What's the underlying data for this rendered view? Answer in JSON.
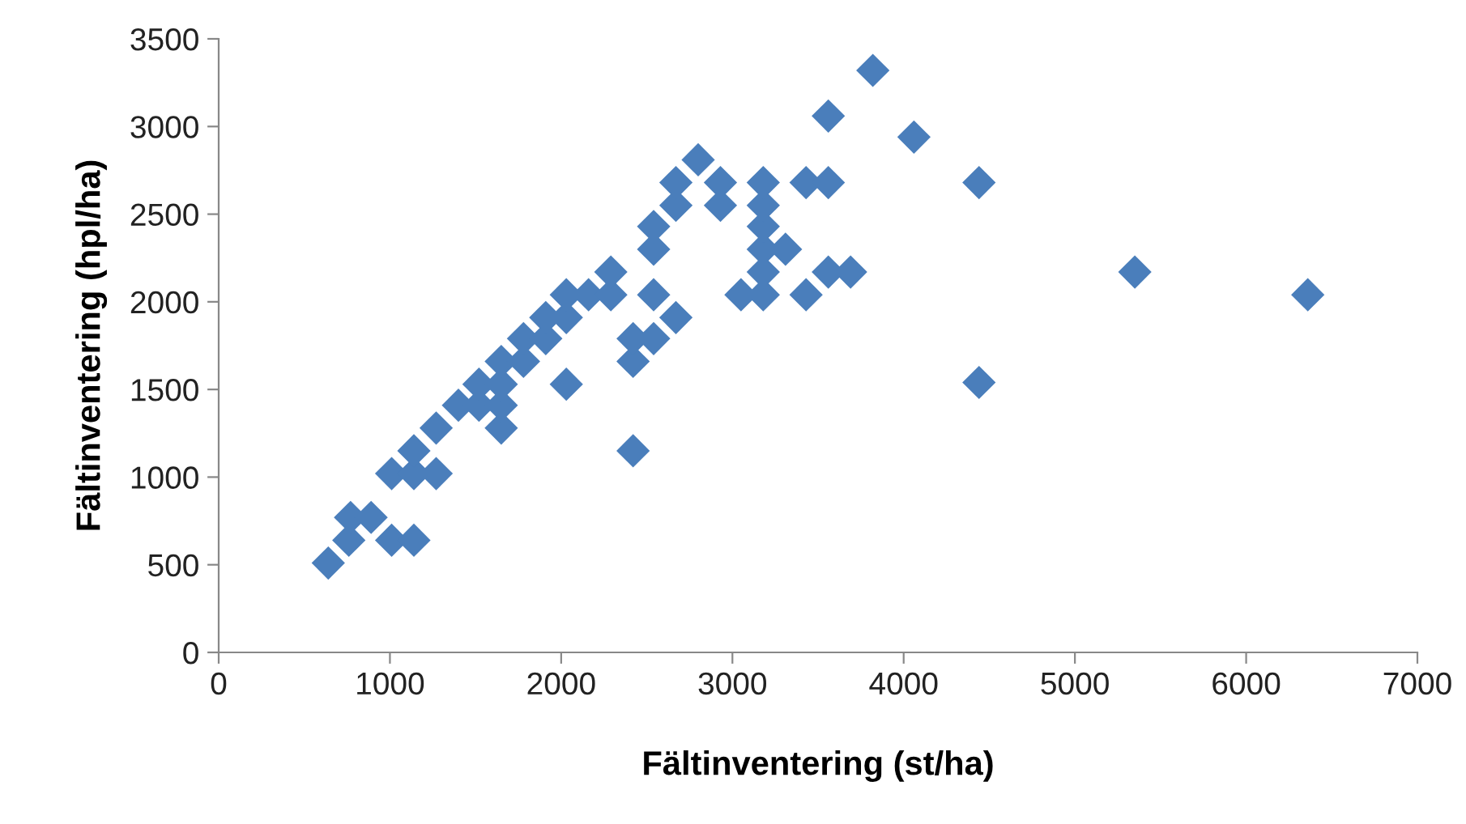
{
  "chart_data": {
    "type": "scatter",
    "xlabel": "Fältinventering (st/ha)",
    "ylabel": "Fältinventering (hpl/ha)",
    "xlim": [
      0,
      7000
    ],
    "xticks": [
      0,
      1000,
      2000,
      3000,
      4000,
      5000,
      6000,
      7000
    ],
    "ylim": [
      0,
      3500
    ],
    "yticks": [
      0,
      500,
      1000,
      1500,
      2000,
      2500,
      3000,
      3500
    ],
    "grid": false,
    "marker": "diamond",
    "legend": false,
    "series": [
      {
        "color": "#4a7ebb",
        "x": [
          640,
          760,
          770,
          890,
          1010,
          1140,
          1010,
          1140,
          1140,
          1270,
          1270,
          1400,
          1520,
          1520,
          1650,
          1650,
          1650,
          1650,
          1780,
          1780,
          1910,
          1910,
          2030,
          2030,
          2030,
          2160,
          2290,
          2290,
          2420,
          2420,
          2420,
          2540,
          2540,
          2540,
          2540,
          2670,
          2670,
          2670,
          2800,
          2930,
          2930,
          3050,
          3180,
          3180,
          3180,
          3180,
          3180,
          3180,
          3310,
          3430,
          3430,
          3560,
          3560,
          3560,
          3690,
          3820,
          4060,
          4440,
          4440,
          5350,
          6360
        ],
        "values": [
          510,
          640,
          770,
          770,
          640,
          640,
          1020,
          1020,
          1150,
          1020,
          1280,
          1410,
          1410,
          1530,
          1280,
          1410,
          1530,
          1660,
          1660,
          1790,
          1790,
          1910,
          1910,
          2040,
          1530,
          2040,
          2040,
          2170,
          1150,
          1660,
          1790,
          1790,
          2040,
          2300,
          2430,
          1910,
          2550,
          2680,
          2810,
          2550,
          2680,
          2040,
          2040,
          2170,
          2300,
          2430,
          2550,
          2680,
          2300,
          2040,
          2680,
          2680,
          2170,
          3060,
          2170,
          3320,
          2940,
          2680,
          1540,
          2170,
          2040
        ]
      }
    ]
  }
}
